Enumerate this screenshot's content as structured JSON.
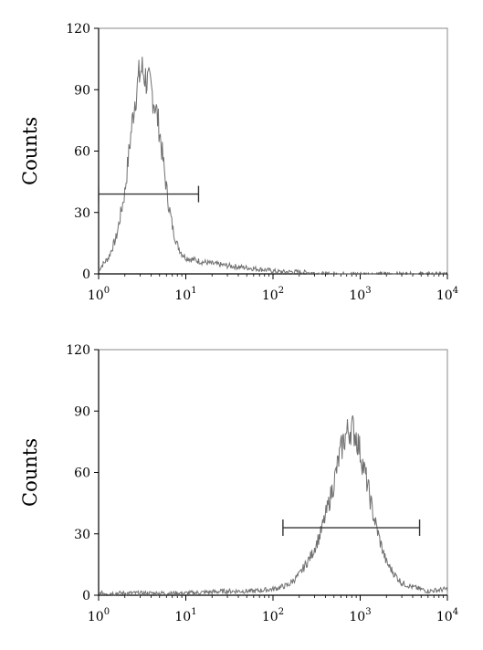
{
  "chart_data": [
    {
      "type": "area",
      "ylabel": "Counts",
      "xscale": "log",
      "xlim": [
        1,
        10000
      ],
      "ylim": [
        0,
        120
      ],
      "x_ticks": [
        {
          "base": "10",
          "exp": "0"
        },
        {
          "base": "10",
          "exp": "1"
        },
        {
          "base": "10",
          "exp": "2"
        },
        {
          "base": "10",
          "exp": "3"
        },
        {
          "base": "10",
          "exp": "4"
        }
      ],
      "y_ticks": [
        "0",
        "30",
        "60",
        "90",
        "120"
      ],
      "y_tick_values": [
        0,
        30,
        60,
        90,
        120
      ],
      "grid": false,
      "line_color": "#707070",
      "histogram": {
        "x": [
          1.0,
          1.3,
          1.6,
          2.0,
          2.3,
          2.6,
          2.9,
          3.1,
          3.3,
          3.6,
          4.0,
          4.5,
          5.0,
          5.6,
          6.3,
          7.1,
          8.0,
          9.0,
          10,
          12,
          15,
          20,
          30,
          50,
          80,
          120,
          200,
          400,
          1000,
          3000,
          9000
        ],
        "y": [
          2,
          8,
          18,
          40,
          65,
          85,
          96,
          100,
          98,
          94,
          90,
          82,
          70,
          52,
          35,
          22,
          14,
          10,
          8,
          7,
          6,
          5,
          4,
          3,
          2,
          1,
          1,
          0,
          0,
          0,
          0
        ]
      },
      "gate": {
        "x_start": 1.0,
        "x_end": 14,
        "y": 39
      }
    },
    {
      "type": "area",
      "ylabel": "Counts",
      "xscale": "log",
      "xlim": [
        1,
        10000
      ],
      "ylim": [
        0,
        120
      ],
      "x_ticks": [
        {
          "base": "10",
          "exp": "0"
        },
        {
          "base": "10",
          "exp": "1"
        },
        {
          "base": "10",
          "exp": "2"
        },
        {
          "base": "10",
          "exp": "3"
        },
        {
          "base": "10",
          "exp": "4"
        }
      ],
      "y_ticks": [
        "0",
        "30",
        "60",
        "90",
        "120"
      ],
      "y_tick_values": [
        0,
        30,
        60,
        90,
        120
      ],
      "grid": false,
      "line_color": "#707070",
      "histogram": {
        "x": [
          1,
          3,
          10,
          30,
          60,
          100,
          150,
          200,
          280,
          350,
          420,
          500,
          580,
          650,
          720,
          800,
          900,
          1000,
          1200,
          1400,
          1700,
          2000,
          2500,
          3000,
          4000,
          6000,
          10000
        ],
        "y": [
          1,
          1,
          1,
          2,
          2,
          3,
          5,
          10,
          20,
          30,
          42,
          55,
          68,
          76,
          80,
          82,
          78,
          70,
          55,
          40,
          26,
          16,
          10,
          6,
          4,
          2,
          3
        ]
      },
      "gate": {
        "x_start": 130,
        "x_end": 4800,
        "y": 33
      }
    }
  ]
}
